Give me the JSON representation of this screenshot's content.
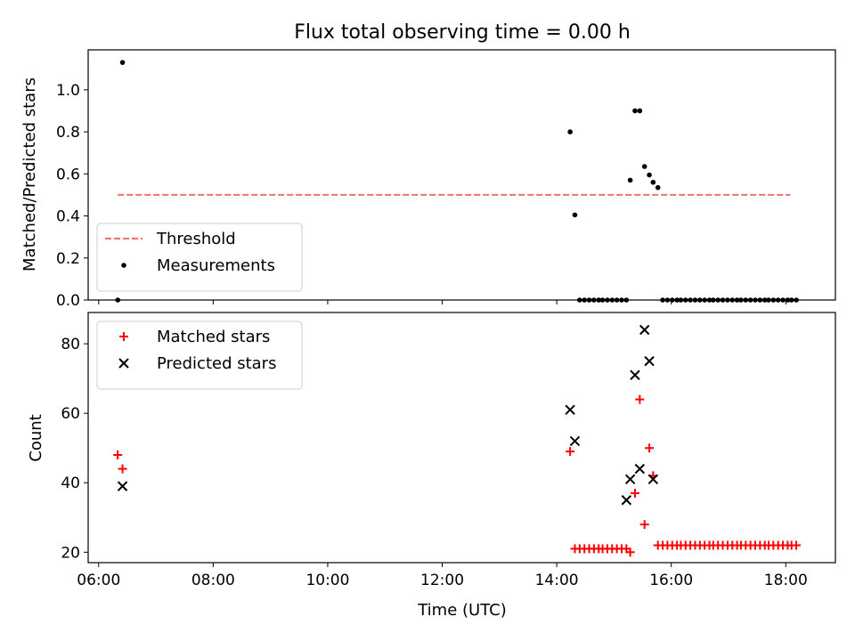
{
  "figure_title": "Flux total observing time = 0.00 h",
  "chart_data": [
    {
      "type": "scatter",
      "panel": "top",
      "title": "Flux total observing time = 0.00 h",
      "xlabel": "",
      "ylabel": "Matched/Predicted stars",
      "xlim": [
        "05:49",
        "18:52"
      ],
      "ylim": [
        0,
        1.19
      ],
      "xticks": [
        "06:00",
        "08:00",
        "10:00",
        "12:00",
        "14:00",
        "16:00",
        "18:00"
      ],
      "x_ticklabels_shown": false,
      "yticks": [
        0.0,
        0.2,
        0.4,
        0.6,
        0.8,
        1.0
      ],
      "yticklabels": [
        "0.0",
        "0.2",
        "0.4",
        "0.6",
        "0.8",
        "1.0"
      ],
      "grid": false,
      "legend_position": "lower-left",
      "series": [
        {
          "name": "Threshold",
          "style": "dashed-line",
          "color": "#f07070",
          "x": [
            "06:20",
            "18:05"
          ],
          "y": [
            0.5,
            0.5
          ]
        },
        {
          "name": "Measurements",
          "style": "dot",
          "color": "#000000",
          "x": [
            "06:20",
            "06:25",
            "14:14",
            "14:19",
            "14:24",
            "14:29",
            "14:34",
            "14:39",
            "14:44",
            "14:48",
            "14:53",
            "14:58",
            "15:03",
            "15:08",
            "15:13",
            "15:17",
            "15:22",
            "15:27",
            "15:32",
            "15:37",
            "15:41",
            "15:46",
            "15:51",
            "15:56",
            "16:01",
            "16:06",
            "16:10",
            "16:15",
            "16:20",
            "16:25",
            "16:30",
            "16:35",
            "16:40",
            "16:44",
            "16:49",
            "16:54",
            "16:59",
            "17:04",
            "17:09",
            "17:13",
            "17:18",
            "17:23",
            "17:28",
            "17:33",
            "17:38",
            "17:42",
            "17:47",
            "17:52",
            "17:57",
            "18:02",
            "18:06",
            "18:11"
          ],
          "y": [
            0.0,
            1.13,
            0.8,
            0.405,
            0.0,
            0.0,
            0.0,
            0.0,
            0.0,
            0.0,
            0.0,
            0.0,
            0.0,
            0.0,
            0.0,
            0.57,
            0.9,
            0.9,
            0.635,
            0.595,
            0.56,
            0.535,
            0.0,
            0.0,
            0.0,
            0.0,
            0.0,
            0.0,
            0.0,
            0.0,
            0.0,
            0.0,
            0.0,
            0.0,
            0.0,
            0.0,
            0.0,
            0.0,
            0.0,
            0.0,
            0.0,
            0.0,
            0.0,
            0.0,
            0.0,
            0.0,
            0.0,
            0.0,
            0.0,
            0.0,
            0.0,
            0.0
          ]
        }
      ]
    },
    {
      "type": "scatter",
      "panel": "bottom",
      "title": "",
      "xlabel": "Time (UTC)",
      "ylabel": "Count",
      "xlim": [
        "05:49",
        "18:52"
      ],
      "ylim": [
        17,
        89
      ],
      "xticks": [
        "06:00",
        "08:00",
        "10:00",
        "12:00",
        "14:00",
        "16:00",
        "18:00"
      ],
      "xticklabels": [
        "06:00",
        "08:00",
        "10:00",
        "12:00",
        "14:00",
        "16:00",
        "18:00"
      ],
      "yticks": [
        20,
        40,
        60,
        80
      ],
      "yticklabels": [
        "20",
        "40",
        "60",
        "80"
      ],
      "grid": false,
      "legend_position": "upper-left",
      "series": [
        {
          "name": "Matched stars",
          "marker": "plus",
          "color": "#ff0000",
          "x": [
            "06:20",
            "06:25",
            "14:14",
            "14:19",
            "14:24",
            "14:29",
            "14:34",
            "14:39",
            "14:44",
            "14:48",
            "14:53",
            "14:58",
            "15:03",
            "15:08",
            "15:13",
            "15:17",
            "15:22",
            "15:27",
            "15:32",
            "15:37",
            "15:41",
            "15:46",
            "15:51",
            "15:56",
            "16:01",
            "16:06",
            "16:10",
            "16:15",
            "16:20",
            "16:25",
            "16:30",
            "16:35",
            "16:40",
            "16:44",
            "16:49",
            "16:54",
            "16:59",
            "17:04",
            "17:09",
            "17:13",
            "17:18",
            "17:23",
            "17:28",
            "17:33",
            "17:38",
            "17:42",
            "17:47",
            "17:52",
            "17:57",
            "18:02",
            "18:06",
            "18:11"
          ],
          "y": [
            48,
            44,
            49,
            21,
            21,
            21,
            21,
            21,
            21,
            21,
            21,
            21,
            21,
            21,
            21,
            20,
            37,
            64,
            28,
            50,
            42,
            22,
            22,
            22,
            22,
            22,
            22,
            22,
            22,
            22,
            22,
            22,
            22,
            22,
            22,
            22,
            22,
            22,
            22,
            22,
            22,
            22,
            22,
            22,
            22,
            22,
            22,
            22,
            22,
            22,
            22,
            22
          ]
        },
        {
          "name": "Predicted stars",
          "marker": "x",
          "color": "#000000",
          "x": [
            "06:25",
            "14:14",
            "14:19",
            "15:13",
            "15:17",
            "15:22",
            "15:27",
            "15:32",
            "15:37",
            "15:41"
          ],
          "y": [
            39,
            61,
            52,
            35,
            41,
            71,
            44,
            84,
            75,
            41
          ]
        }
      ]
    }
  ]
}
